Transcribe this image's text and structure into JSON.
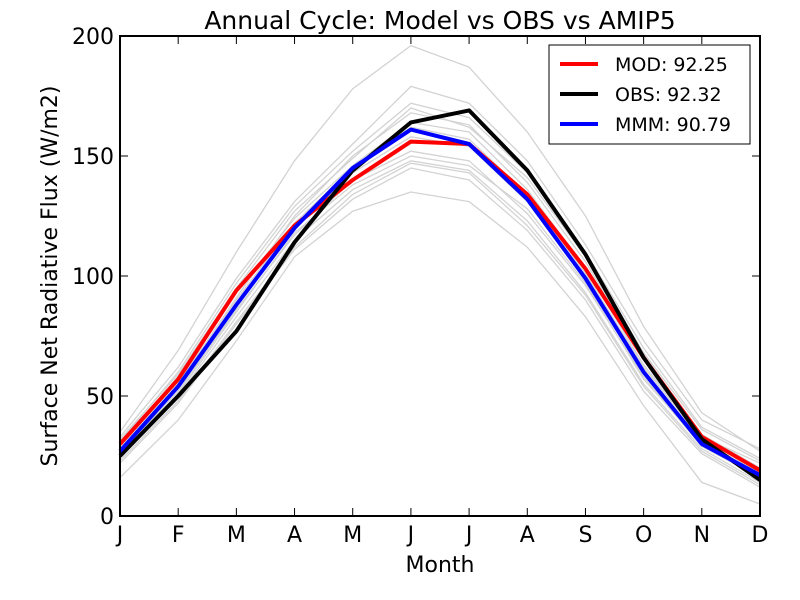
{
  "chart_data": {
    "type": "line",
    "title": "Annual Cycle: Model vs OBS vs AMIP5",
    "xlabel": "Month",
    "ylabel": "Surface Net Radiative Flux (W/m2)",
    "categories": [
      "J",
      "F",
      "M",
      "A",
      "M",
      "J",
      "J",
      "A",
      "S",
      "O",
      "N",
      "D"
    ],
    "ylim": [
      0,
      200
    ],
    "yticks": [
      0,
      50,
      100,
      150,
      200
    ],
    "grid": false,
    "legend_position": "upper-right",
    "series": [
      {
        "name": "MOD: 92.25",
        "color": "#ff0000",
        "values": [
          30,
          57,
          94,
          121,
          140,
          156,
          155,
          134,
          103,
          66,
          33,
          19
        ]
      },
      {
        "name": "OBS: 92.32",
        "color": "#000000",
        "values": [
          25,
          50,
          77,
          114,
          144,
          164,
          169,
          144,
          109,
          66,
          32,
          15
        ]
      },
      {
        "name": "MMM: 90.79",
        "color": "#0000ff",
        "values": [
          27,
          54,
          88,
          120,
          145,
          161,
          155,
          132,
          99,
          60,
          30,
          17
        ]
      }
    ],
    "ensemble_color": "#d3d3d3",
    "ensemble": [
      [
        35,
        69,
        110,
        148,
        178,
        196,
        187,
        160,
        125,
        79,
        43,
        27
      ],
      [
        16,
        40,
        73,
        108,
        127,
        135,
        131,
        112,
        83,
        46,
        14,
        5
      ],
      [
        33,
        62,
        99,
        131,
        155,
        179,
        172,
        148,
        113,
        73,
        40,
        28
      ],
      [
        22,
        47,
        80,
        111,
        132,
        145,
        140,
        119,
        90,
        52,
        26,
        12
      ],
      [
        28,
        55,
        91,
        125,
        150,
        168,
        163,
        139,
        106,
        65,
        34,
        20
      ],
      [
        26,
        52,
        86,
        117,
        140,
        152,
        148,
        126,
        96,
        58,
        29,
        16
      ],
      [
        31,
        60,
        97,
        129,
        152,
        172,
        166,
        143,
        110,
        70,
        37,
        24
      ],
      [
        24,
        50,
        83,
        115,
        136,
        148,
        144,
        123,
        93,
        55,
        28,
        14
      ],
      [
        30,
        58,
        93,
        124,
        146,
        164,
        160,
        136,
        103,
        63,
        33,
        22
      ],
      [
        27,
        53,
        88,
        120,
        143,
        158,
        154,
        131,
        99,
        60,
        31,
        18
      ],
      [
        29,
        56,
        90,
        122,
        145,
        162,
        157,
        134,
        101,
        62,
        32,
        19
      ],
      [
        25,
        51,
        85,
        118,
        138,
        150,
        146,
        128,
        97,
        57,
        30,
        17
      ],
      [
        32,
        59,
        95,
        127,
        149,
        170,
        162,
        141,
        108,
        68,
        36,
        23
      ],
      [
        23,
        48,
        81,
        112,
        134,
        147,
        143,
        121,
        92,
        54,
        27,
        13
      ]
    ]
  }
}
